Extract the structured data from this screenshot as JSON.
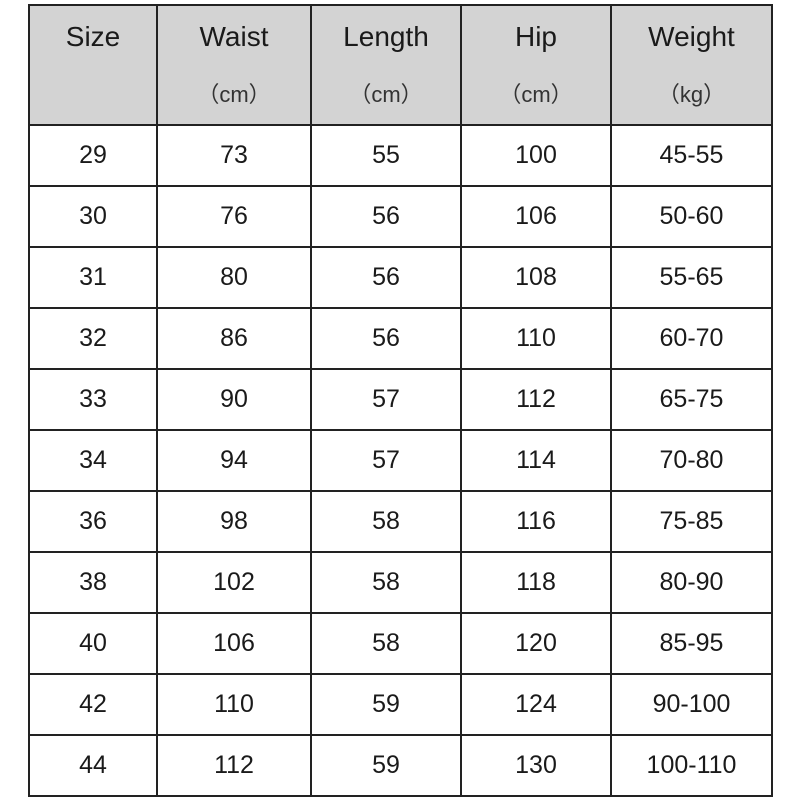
{
  "header": [
    {
      "title": "Size",
      "unit": ""
    },
    {
      "title": "Waist",
      "unit": "（cm）"
    },
    {
      "title": "Length",
      "unit": "（cm）"
    },
    {
      "title": "Hip",
      "unit": "（cm）"
    },
    {
      "title": "Weight",
      "unit": "（kg）"
    }
  ],
  "rows": [
    [
      "29",
      "73",
      "55",
      "100",
      "45-55"
    ],
    [
      "30",
      "76",
      "56",
      "106",
      "50-60"
    ],
    [
      "31",
      "80",
      "56",
      "108",
      "55-65"
    ],
    [
      "32",
      "86",
      "56",
      "110",
      "60-70"
    ],
    [
      "33",
      "90",
      "57",
      "112",
      "65-75"
    ],
    [
      "34",
      "94",
      "57",
      "114",
      "70-80"
    ],
    [
      "36",
      "98",
      "58",
      "116",
      "75-85"
    ],
    [
      "38",
      "102",
      "58",
      "118",
      "80-90"
    ],
    [
      "40",
      "106",
      "58",
      "120",
      "85-95"
    ],
    [
      "42",
      "110",
      "59",
      "124",
      "90-100"
    ],
    [
      "44",
      "112",
      "59",
      "130",
      "100-110"
    ]
  ],
  "colors": {
    "header_bg": "#d3d3d3",
    "border": "#222222"
  }
}
